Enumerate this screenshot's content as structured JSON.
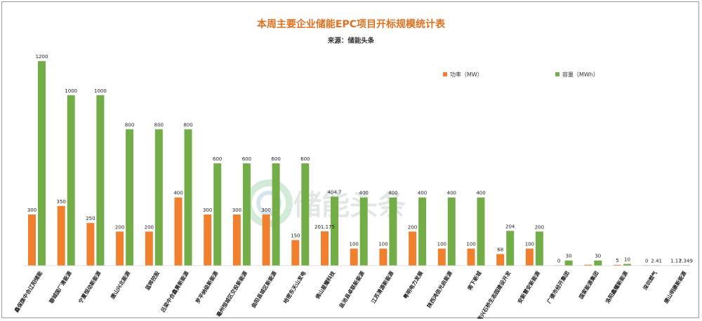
{
  "chart_data": {
    "type": "bar",
    "title": "本周主要企业储能EPC项目开标规模统计表",
    "subtitle": "来源：储能头条",
    "categories": [
      "鑫保旗中合辽阳储能",
      "聊城国厂清能源",
      "宁夏恒动新能源",
      "唐山兴北能源",
      "蓝晔控股",
      "吕梁中合鑫黄新能源",
      "罗平纳级新能源",
      "毫州恒城区交投新能源",
      "曲阳县城区新能源",
      "哈密东天山发电",
      "佛山星耀科技",
      "盐池县卓联新能源",
      "江苏清源新能源",
      "粤明电力发展",
      "陕西鸿信光启能源",
      "南下新城",
      "南兴石桥生态园建设开发",
      "安新慧安新能源",
      "广德市经开集团",
      "国家能源集团",
      "洛阳鑫耀新能源",
      "深圳燃气",
      "唐山明康新能源"
    ],
    "series": [
      {
        "name": "功率（MW）",
        "color": "#f07f2e",
        "values": [
          300,
          350,
          250,
          200,
          200,
          400,
          300,
          300,
          300,
          150,
          201.175,
          100,
          100,
          200,
          100,
          100,
          68,
          100,
          0,
          5.5,
          5,
          0,
          1.17
        ],
        "labels": [
          "300",
          "350",
          "250",
          "200",
          "200",
          "400",
          "300",
          "300",
          "300",
          "150",
          "201.175",
          "100",
          "100",
          "200",
          "100",
          "100",
          "68",
          "100",
          "0",
          "",
          "5",
          "0",
          "1.17"
        ]
      },
      {
        "name": "容量（MWh）",
        "color": "#72ad47",
        "values": [
          1200,
          1000,
          1000,
          800,
          800,
          800,
          600,
          600,
          600,
          600,
          404.7,
          400,
          400,
          400,
          400,
          400,
          204,
          200,
          30,
          30,
          10,
          2.41,
          2.349
        ],
        "labels": [
          "1200",
          "1000",
          "1000",
          "800",
          "800",
          "800",
          "600",
          "600",
          "600",
          "600",
          "404.7",
          "400",
          "400",
          "400",
          "400",
          "400",
          "204",
          "200",
          "30",
          "30",
          "10",
          "2.41",
          "2.349"
        ]
      }
    ],
    "ylim": [
      0,
      1250
    ],
    "grid": false,
    "legend_position": "top-right"
  },
  "watermark": {
    "text": "储能头条",
    "icon": "storage-logo-icon"
  }
}
